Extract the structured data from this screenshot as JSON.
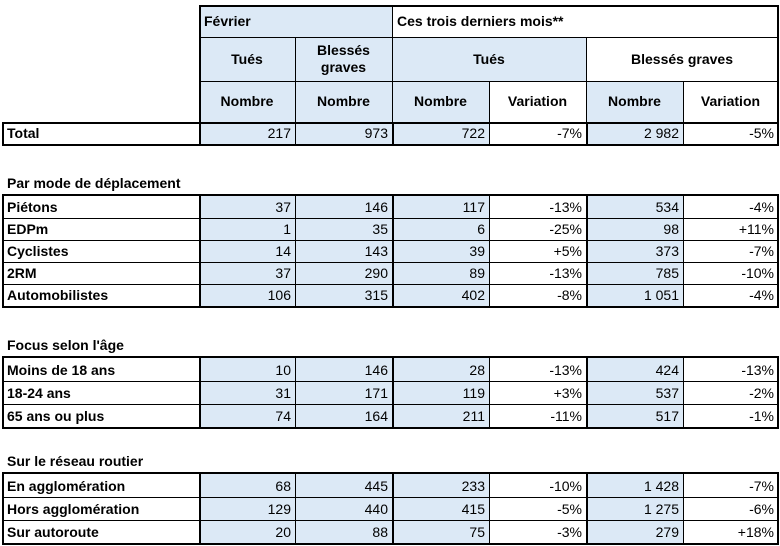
{
  "header": {
    "fevrier": "Février",
    "ces_trois_mois": "Ces trois derniers mois**",
    "tues": "Tués",
    "blesses_graves_2line": "Blessés\ngraves",
    "blesses_graves": "Blessés graves",
    "nombre": "Nombre",
    "variation": "Variation"
  },
  "total": {
    "label": "Total",
    "values": [
      "217",
      "973",
      "722",
      "-7%",
      "2 982",
      "-5%"
    ]
  },
  "sections": [
    {
      "title": "Par mode de déplacement",
      "rows": [
        {
          "label": "Piétons",
          "values": [
            "37",
            "146",
            "117",
            "-13%",
            "534",
            "-4%"
          ]
        },
        {
          "label": "EDPm",
          "values": [
            "1",
            "35",
            "6",
            "-25%",
            "98",
            "+11%"
          ]
        },
        {
          "label": "Cyclistes",
          "values": [
            "14",
            "143",
            "39",
            "+5%",
            "373",
            "-7%"
          ]
        },
        {
          "label": "2RM",
          "values": [
            "37",
            "290",
            "89",
            "-13%",
            "785",
            "-10%"
          ]
        },
        {
          "label": "Automobilistes",
          "values": [
            "106",
            "315",
            "402",
            "-8%",
            "1 051",
            "-4%"
          ]
        }
      ]
    },
    {
      "title": "Focus selon l'âge",
      "rows": [
        {
          "label": "Moins de 18 ans",
          "values": [
            "10",
            "146",
            "28",
            "-13%",
            "424",
            "-13%"
          ]
        },
        {
          "label": "18-24 ans",
          "values": [
            "31",
            "171",
            "119",
            "+3%",
            "537",
            "-2%"
          ]
        },
        {
          "label": "65 ans ou plus",
          "values": [
            "74",
            "164",
            "211",
            "-11%",
            "517",
            "-1%"
          ]
        }
      ]
    },
    {
      "title": "Sur le réseau routier",
      "rows": [
        {
          "label": "En agglomération",
          "values": [
            "68",
            "445",
            "233",
            "-10%",
            "1 428",
            "-7%"
          ]
        },
        {
          "label": "Hors agglomération",
          "values": [
            "129",
            "440",
            "415",
            "-5%",
            "1 275",
            "-6%"
          ]
        },
        {
          "label": "Sur autoroute",
          "values": [
            "20",
            "88",
            "75",
            "-3%",
            "279",
            "+18%"
          ]
        }
      ]
    }
  ]
}
